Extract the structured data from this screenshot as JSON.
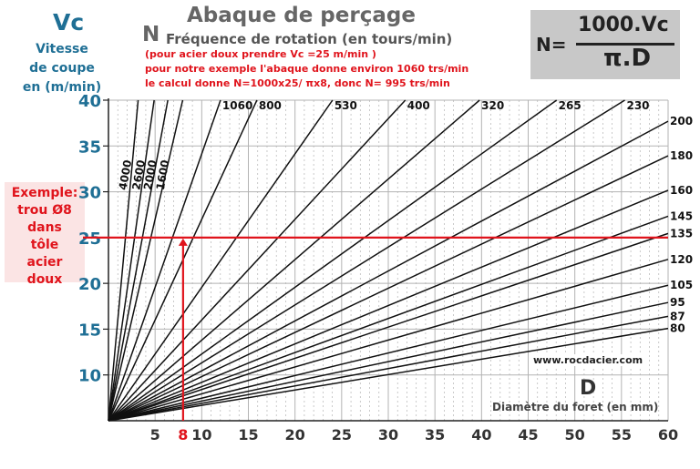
{
  "header": {
    "vc_symbol": "Vc",
    "vc_label_lines": [
      "Vitesse",
      "de coupe",
      "en (m/min)"
    ],
    "title": "Abaque de perçage",
    "n_symbol": "N",
    "n_label": "Fréquence de rotation (en tours/min)",
    "notes": [
      "(pour acier doux prendre Vc =25 m/min )",
      "pour notre exemple l'abaque donne environ 1060 trs/min",
      "le calcul donne N=1000x25/ πx8, donc N= 995 trs/min"
    ]
  },
  "formula": {
    "lhs": "N=",
    "numerator": "1000.Vc",
    "denominator": "π.D"
  },
  "example": {
    "lines": [
      "Exemple:",
      "trou Ø8",
      "dans",
      "tôle",
      "acier",
      "doux"
    ]
  },
  "x_axis": {
    "symbol": "D",
    "label": "Diamètre du foret (en mm)"
  },
  "website": "www.rocdacier.com",
  "colors": {
    "axis_label_blue": "#1f6f95",
    "highlight_red": "#e0141c",
    "curve_black": "#111111",
    "grid_gray": "#b3b3b3",
    "formula_box_gray": "#c8c8c8"
  },
  "chart_data": {
    "type": "line",
    "x": {
      "label": "Diamètre du foret (en mm)",
      "range": [
        0,
        60
      ],
      "ticks": [
        5,
        8,
        10,
        15,
        20,
        25,
        30,
        35,
        40,
        45,
        50,
        55,
        60
      ],
      "highlight_tick": 8
    },
    "y": {
      "label": "Vitesse de coupe en (m/min)",
      "range": [
        5,
        40
      ],
      "ticks": [
        10,
        15,
        20,
        25,
        30,
        35,
        40
      ]
    },
    "relation": "Vc = pi * D * N / 1000",
    "series": [
      {
        "name": "4000",
        "rpm": 4000
      },
      {
        "name": "2600",
        "rpm": 2600
      },
      {
        "name": "2000",
        "rpm": 2000
      },
      {
        "name": "1600",
        "rpm": 1600
      },
      {
        "name": "1060",
        "rpm": 1060
      },
      {
        "name": "800",
        "rpm": 800
      },
      {
        "name": "530",
        "rpm": 530
      },
      {
        "name": "400",
        "rpm": 400
      },
      {
        "name": "320",
        "rpm": 320
      },
      {
        "name": "265",
        "rpm": 265
      },
      {
        "name": "230",
        "rpm": 230
      },
      {
        "name": "200",
        "rpm": 200
      },
      {
        "name": "180",
        "rpm": 180
      },
      {
        "name": "160",
        "rpm": 160
      },
      {
        "name": "145",
        "rpm": 145
      },
      {
        "name": "135",
        "rpm": 135
      },
      {
        "name": "120",
        "rpm": 120
      },
      {
        "name": "105",
        "rpm": 105
      },
      {
        "name": "95",
        "rpm": 95
      },
      {
        "name": "87",
        "rpm": 87
      },
      {
        "name": "80",
        "rpm": 80
      }
    ],
    "example": {
      "diameter_mm": 8,
      "vc": 25
    }
  }
}
